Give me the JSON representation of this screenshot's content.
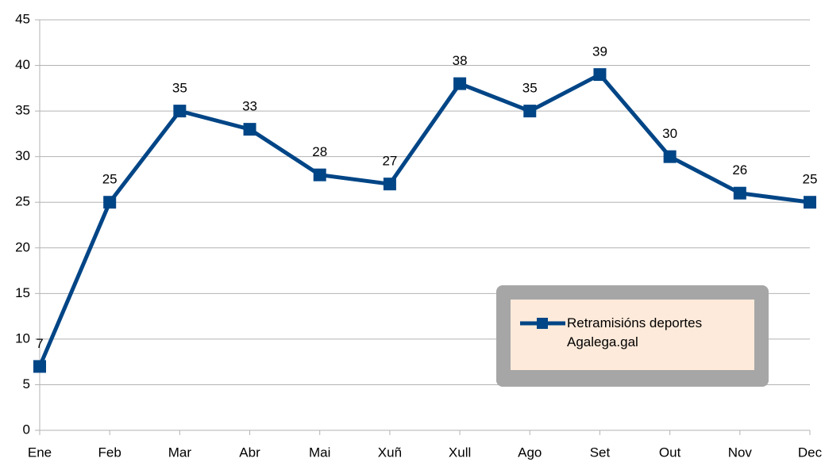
{
  "chart_data": {
    "type": "line",
    "categories": [
      "Ene",
      "Feb",
      "Mar",
      "Abr",
      "Mai",
      "Xuñ",
      "Xull",
      "Ago",
      "Set",
      "Out",
      "Nov",
      "Dec"
    ],
    "series": [
      {
        "name": "Retramisións deportes Agalega.gal",
        "color": "#004586",
        "values": [
          7,
          25,
          35,
          33,
          28,
          27,
          38,
          35,
          39,
          30,
          26,
          25
        ]
      }
    ],
    "ylim": [
      0,
      45
    ],
    "yticks": [
      0,
      5,
      10,
      15,
      20,
      25,
      30,
      35,
      40,
      45
    ],
    "grid": true,
    "legend": "lower right"
  }
}
